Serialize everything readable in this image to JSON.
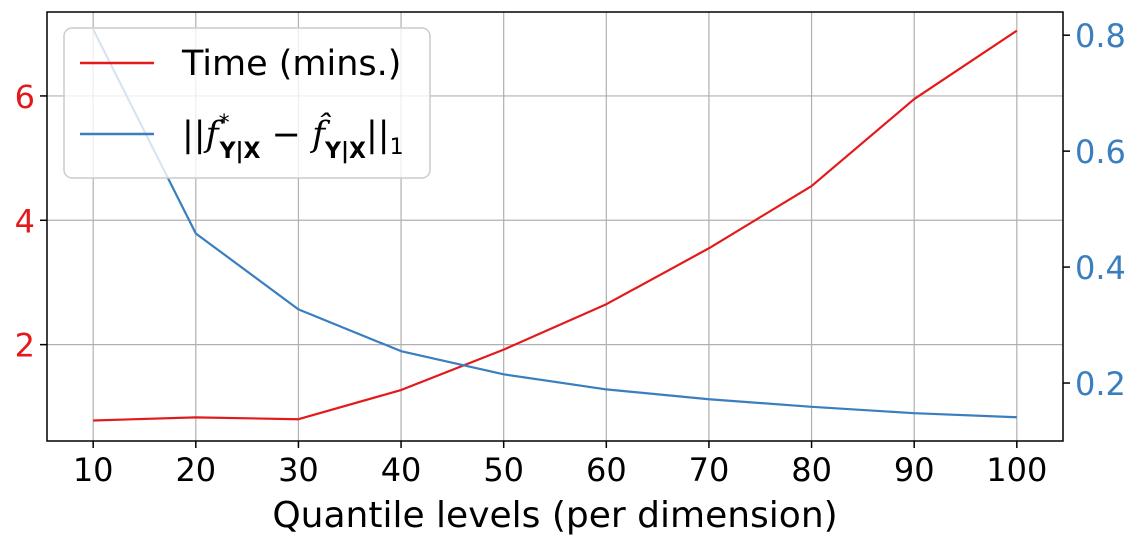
{
  "chart_data": {
    "type": "line",
    "x": [
      10,
      20,
      30,
      40,
      50,
      60,
      70,
      80,
      90,
      100
    ],
    "xticks": [
      "10",
      "20",
      "30",
      "40",
      "50",
      "60",
      "70",
      "80",
      "90",
      "100"
    ],
    "xlabel": "Quantile levels (per dimension)",
    "xlim": [
      5.5,
      104.5
    ],
    "grid": true,
    "legend_position": "top-left",
    "series": [
      {
        "name": "Time (mins.)",
        "axis": "left",
        "color": "#e31a1c",
        "values": [
          0.78,
          0.83,
          0.8,
          1.27,
          1.92,
          2.65,
          3.55,
          4.55,
          5.95,
          7.05
        ]
      },
      {
        "name": "||f*_{Y|X} − f̂_{Y|X}||_1",
        "axis": "right",
        "color": "#3a7ebf",
        "values": [
          0.81,
          0.458,
          0.327,
          0.255,
          0.215,
          0.189,
          0.172,
          0.159,
          0.148,
          0.141
        ]
      }
    ],
    "left_axis": {
      "ticks": [
        2,
        4,
        6
      ],
      "tick_labels": [
        "2",
        "4",
        "6"
      ],
      "ylim": [
        0.45,
        7.35
      ],
      "color": "#e31a1c"
    },
    "right_axis": {
      "ticks": [
        0.2,
        0.4,
        0.6,
        0.8
      ],
      "tick_labels": [
        "0.2",
        "0.4",
        "0.6",
        "0.8"
      ],
      "ylim": [
        0.1,
        0.84
      ],
      "color": "#3a7ebf"
    },
    "legend": {
      "time_label": "Time (mins.)"
    }
  }
}
